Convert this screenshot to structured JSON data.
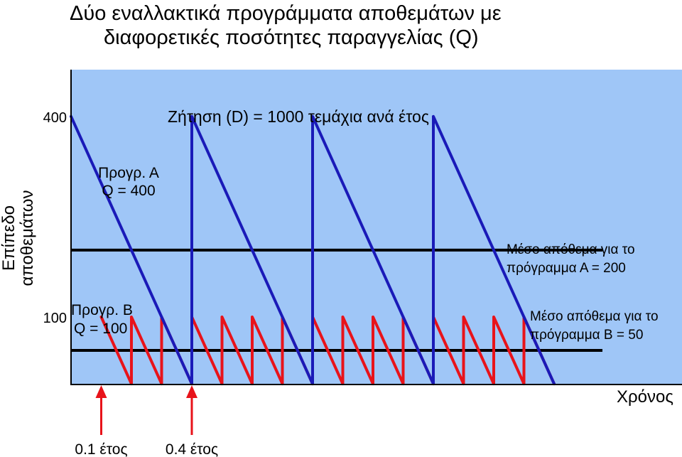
{
  "title": {
    "line1": "Δύο εναλλακτικά προγράμματα αποθεμάτων με",
    "line2": "διαφορετικές ποσότητες παραγγελίας (Q)"
  },
  "demand_label": "Ζήτηση (D) = 1000 τεμάχια ανά έτος",
  "ylabel": [
    "Επίπεδο",
    "αποθεμάτων"
  ],
  "xlabel": "Χρόνος",
  "colors": {
    "background": "#9fc6f7",
    "program_a": "#1a1ab8",
    "program_b": "#e8131a",
    "average_line": "#000000",
    "arrow": "#e8131a"
  },
  "annotations": {
    "program_a_line1": "Προγρ. Α",
    "program_a_line2": "Q = 400",
    "program_b_line1": "Προγρ. Β",
    "program_b_line2": "Q = 100",
    "avg_a_line1": "Μέσο απόθεμα για το",
    "avg_a_line2": "πρόγραμμα Α = 200",
    "avg_b_line1": "Μέσο απόθεμα για το",
    "avg_b_line2": "πρόγραμμα Β = 50"
  },
  "arrows": [
    {
      "label": "0.1 έτος",
      "x": 0.1
    },
    {
      "label": "0.4 έτος",
      "x": 0.4
    }
  ],
  "chart_data": {
    "type": "line",
    "xlim": [
      0,
      1.6
    ],
    "ylim": [
      0,
      470
    ],
    "yticks": [
      {
        "value": 400,
        "label": "400"
      },
      {
        "value": 100,
        "label": "100"
      }
    ],
    "series": [
      {
        "key": "program_a",
        "cycle_length": 0.4,
        "cycles": 4,
        "peak": 400,
        "start": 0
      },
      {
        "key": "program_b",
        "cycle_length": 0.1,
        "cycles": 15,
        "peak": 100,
        "start": 0.1
      }
    ],
    "average_lines": [
      {
        "value": 200,
        "x_end": 1.76
      },
      {
        "value": 50,
        "x_end": 1.76
      }
    ]
  }
}
